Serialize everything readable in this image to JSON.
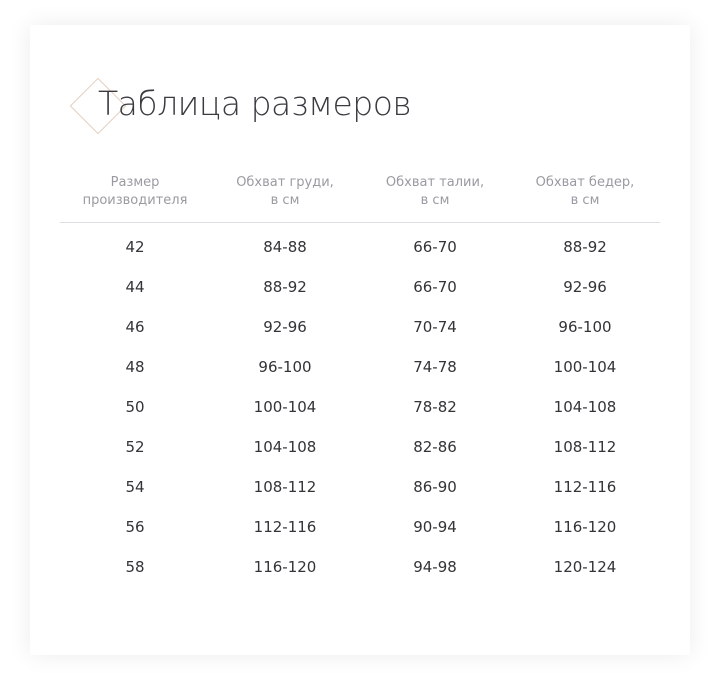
{
  "title": "Таблица размеров",
  "accent_color": "#e3cfc0",
  "table": {
    "headers": [
      [
        "Размер",
        "производителя"
      ],
      [
        "Обхват груди,",
        "в см"
      ],
      [
        "Обхват талии,",
        "в см"
      ],
      [
        "Обхват бедер,",
        "в см"
      ]
    ],
    "rows": [
      [
        "42",
        "84-88",
        "66-70",
        "88-92"
      ],
      [
        "44",
        "88-92",
        "66-70",
        "92-96"
      ],
      [
        "46",
        "92-96",
        "70-74",
        "96-100"
      ],
      [
        "48",
        "96-100",
        "74-78",
        "100-104"
      ],
      [
        "50",
        "100-104",
        "78-82",
        "104-108"
      ],
      [
        "52",
        "104-108",
        "82-86",
        "108-112"
      ],
      [
        "54",
        "108-112",
        "86-90",
        "112-116"
      ],
      [
        "56",
        "112-116",
        "90-94",
        "116-120"
      ],
      [
        "58",
        "116-120",
        "94-98",
        "120-124"
      ]
    ]
  }
}
